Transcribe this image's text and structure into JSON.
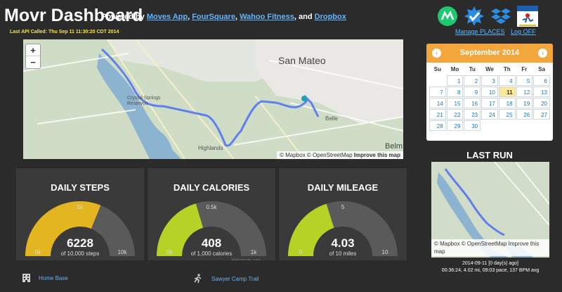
{
  "header": {
    "title": "Movr Dashboard",
    "powered_prefix": "Powered by",
    "links": [
      "Moves App",
      "FourSquare",
      "Wahoo Fitness",
      "Dropbox"
    ],
    "sep1": ",",
    "sep2": ",",
    "sep3": ", and",
    "last_api": "Last API Called: Thu Sep 11 11:30:20 CDT 2014"
  },
  "service_icons": [
    "moves-icon",
    "foursquare-icon",
    "dropbox-icon",
    "wahoo-icon"
  ],
  "top_links": {
    "manage": "Manage PLACES",
    "logoff": "Log OFF"
  },
  "map": {
    "zoom_in": "+",
    "zoom_out": "−",
    "labels": {
      "city": "San Mateo",
      "belmont": "Belm",
      "highlands": "Highlands",
      "belle": "Belle",
      "reservoir": "Crystal Springs Reservoir"
    },
    "attribution_mapbox": "© Mapbox",
    "attribution_osm": "© OpenStreetMap",
    "improve": "Improve this map"
  },
  "calendar": {
    "month": "September 2014",
    "prev": "‹",
    "next": "›",
    "dow": [
      "Su",
      "Mo",
      "Tu",
      "We",
      "Th",
      "Fr",
      "Sa"
    ],
    "leading_blanks": 1,
    "days": [
      "1",
      "2",
      "3",
      "4",
      "5",
      "6",
      "7",
      "8",
      "9",
      "10",
      "11",
      "12",
      "13",
      "14",
      "15",
      "16",
      "17",
      "18",
      "19",
      "20",
      "21",
      "22",
      "23",
      "24",
      "25",
      "26",
      "27",
      "28",
      "29",
      "30"
    ],
    "today": "11"
  },
  "last_run": {
    "title": "LAST RUN",
    "attribution": "© Mapbox © OpenStreetMap Improve this map",
    "date": "2014-09-11 [0 day(s) ago]",
    "stats": "00:36:24, 4.02 mi, 09:03 pace, 137 BPM avg"
  },
  "gauges": [
    {
      "title": "DAILY STEPS",
      "value": "6228",
      "goal_text": "of 10,000 steps",
      "min": "0k",
      "max": "10k",
      "mid": "5k",
      "fraction": 0.6228,
      "color": "#e3b521"
    },
    {
      "title": "DAILY CALORIES",
      "value": "408",
      "goal_text": "of 1,000 calories",
      "min": "0k",
      "max": "1k",
      "mid": "0.5k",
      "fraction": 0.408,
      "color": "#b6d227"
    },
    {
      "title": "DAILY MILEAGE",
      "value": "4.03",
      "goal_text": "of 10 miles",
      "min": "0",
      "max": "10",
      "mid": "5",
      "fraction": 0.403,
      "color": "#b6d227"
    }
  ],
  "highcharts_credit": "Highcharts.com",
  "bottom_links": {
    "home": "Home Base",
    "trail": "Sawyer Camp Trail"
  }
}
